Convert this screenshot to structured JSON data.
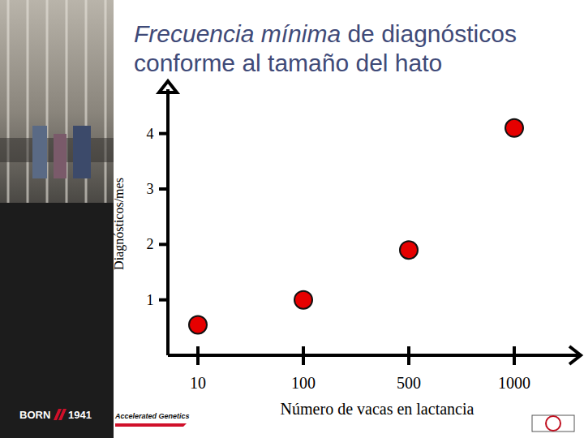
{
  "chart_data": {
    "type": "scatter",
    "title": "Frecuencia mínima de diagnósticos conforme al tamaño del hato",
    "x_label": "Número de vacas en lactancia",
    "y_label": "Diagnósticos/mes",
    "categories": [
      "10",
      "100",
      "500",
      "1000"
    ],
    "values": [
      0.55,
      1.0,
      1.9,
      4.1
    ],
    "color": "#e60000",
    "marker": "circle",
    "ylim": [
      0,
      4.8
    ],
    "yticks": [
      1,
      2,
      3,
      4
    ],
    "grid": false,
    "annotations": [
      "BORN",
      "1941",
      "Accelerated Genetics"
    ]
  }
}
